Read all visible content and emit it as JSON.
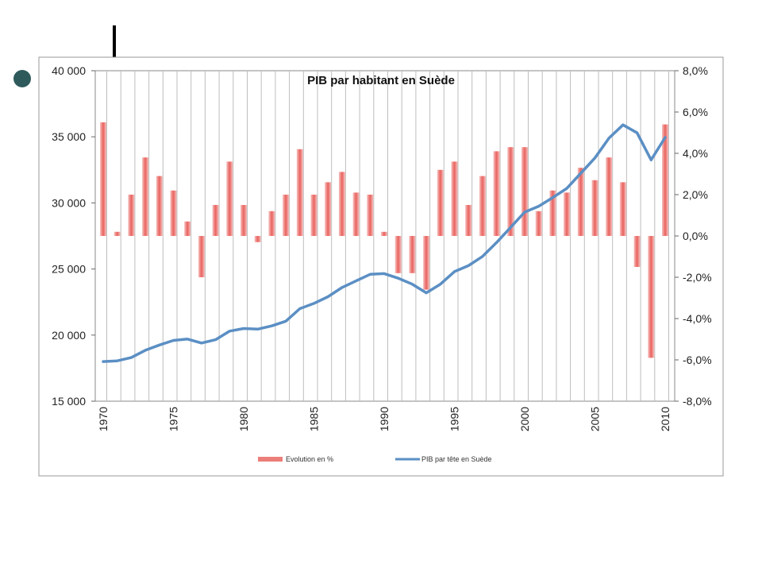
{
  "chart_data": {
    "type": "bar+line",
    "title": "PIB par habitant en Suède",
    "x_ticks": [
      "1970",
      "1975",
      "1980",
      "1985",
      "1990",
      "1995",
      "2000",
      "2005",
      "2010"
    ],
    "years": [
      1970,
      1971,
      1972,
      1973,
      1974,
      1975,
      1976,
      1977,
      1978,
      1979,
      1980,
      1981,
      1982,
      1983,
      1984,
      1985,
      1986,
      1987,
      1988,
      1989,
      1990,
      1991,
      1992,
      1993,
      1994,
      1995,
      1996,
      1997,
      1998,
      1999,
      2000,
      2001,
      2002,
      2003,
      2004,
      2005,
      2006,
      2007,
      2008,
      2009,
      2010
    ],
    "left_axis": {
      "ylim": [
        15000,
        40000
      ],
      "ticks": [
        "15 000",
        "20 000",
        "25 000",
        "30 000",
        "35 000",
        "40 000"
      ],
      "tick_values": [
        15000,
        20000,
        25000,
        30000,
        35000,
        40000
      ]
    },
    "right_axis": {
      "ylim": [
        -8,
        8
      ],
      "ticks": [
        "-8,0%",
        "-6,0%",
        "-4,0%",
        "-2,0%",
        "0,0%",
        "2,0%",
        "4,0%",
        "6,0%",
        "8,0%"
      ],
      "tick_values": [
        -8,
        -6,
        -4,
        -2,
        0,
        2,
        4,
        6,
        8
      ]
    },
    "series": [
      {
        "name": "Evolution en %",
        "kind": "bar",
        "axis": "right",
        "color": "#e8625e",
        "values": [
          5.5,
          0.2,
          2.0,
          3.8,
          2.9,
          2.2,
          0.7,
          -2.0,
          1.5,
          3.6,
          1.5,
          -0.3,
          1.2,
          2.0,
          4.2,
          2.0,
          2.6,
          3.1,
          2.1,
          2.0,
          0.2,
          -1.8,
          -1.8,
          -2.6,
          3.2,
          3.6,
          1.5,
          2.9,
          4.1,
          4.3,
          4.3,
          1.2,
          2.2,
          2.1,
          3.3,
          2.7,
          3.8,
          2.6,
          -1.5,
          -5.9,
          5.4
        ]
      },
      {
        "name": "PIB par tête en Suède",
        "kind": "line",
        "axis": "left",
        "color": "#5b8fc4",
        "values": [
          18000,
          18050,
          18300,
          18850,
          19250,
          19600,
          19700,
          19400,
          19650,
          20300,
          20500,
          20450,
          20700,
          21050,
          22000,
          22400,
          22900,
          23600,
          24100,
          24600,
          24650,
          24300,
          23850,
          23200,
          23850,
          24800,
          25250,
          25950,
          27000,
          28150,
          29300,
          29750,
          30400,
          31100,
          32250,
          33400,
          34900,
          35900,
          35300,
          33250,
          34950
        ]
      }
    ],
    "legend": {
      "placement": "bottom"
    },
    "grid": {
      "vertical": true,
      "horizontal": false
    }
  }
}
